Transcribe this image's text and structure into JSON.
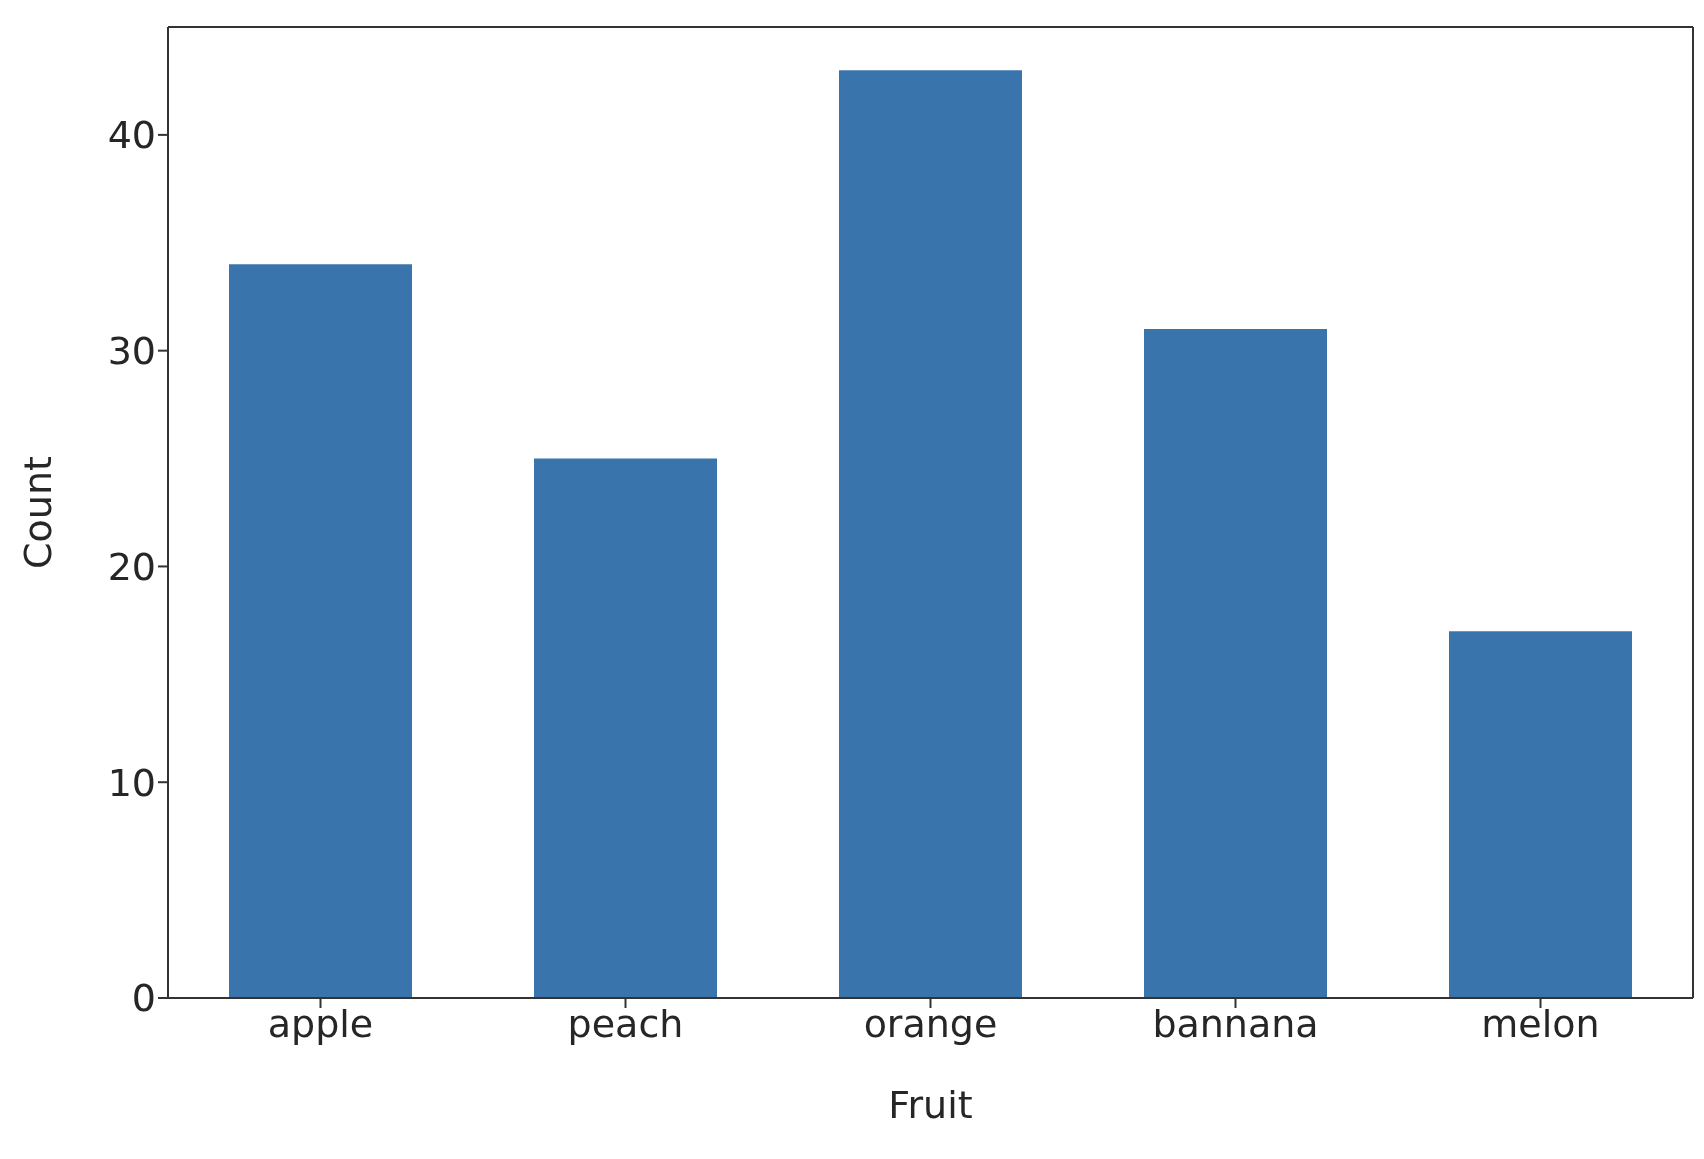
{
  "chart_data": {
    "type": "bar",
    "xlabel": "Fruit",
    "ylabel": "Count",
    "categories": [
      "apple",
      "peach",
      "orange",
      "bannana",
      "melon"
    ],
    "values": [
      34,
      25,
      43,
      31,
      17
    ],
    "color": "#3a74ad",
    "ylim": [
      0,
      45
    ],
    "yticks": [
      0,
      10,
      20,
      30,
      40
    ],
    "grid": false
  }
}
